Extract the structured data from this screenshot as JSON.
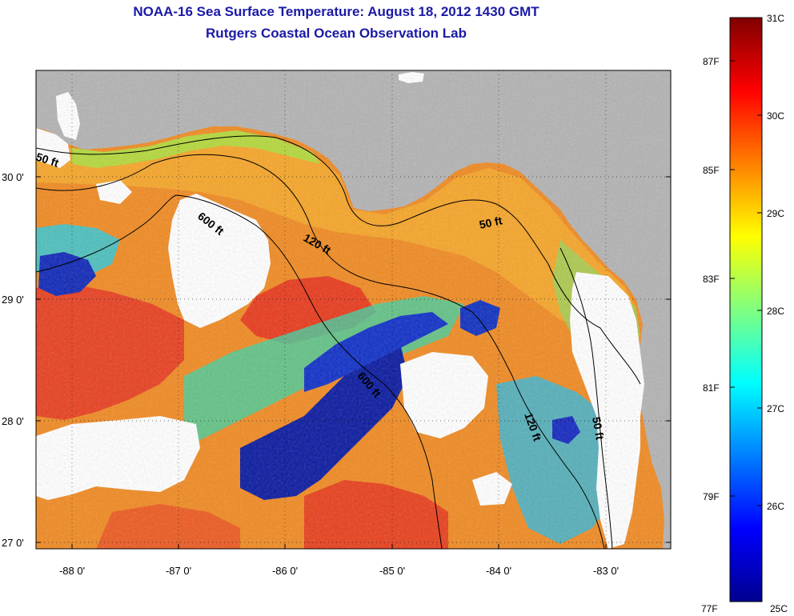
{
  "title": {
    "line1": "NOAA-16 Sea Surface Temperature:  August 18, 2012 1430 GMT",
    "line2": "Rutgers Coastal Ocean Observation Lab"
  },
  "axes": {
    "x_ticks": [
      "-88 0'",
      "-87 0'",
      "-86 0'",
      "-85 0'",
      "-84 0'",
      "-83 0'"
    ],
    "y_ticks": [
      "30 0'",
      "29 0'",
      "28 0'",
      "27 0'"
    ]
  },
  "contours": {
    "c50_west": "50 ft",
    "c600_north": "600 ft",
    "c120_north": "120 ft",
    "c50_east": "50 ft",
    "c600_south": "600 ft",
    "c120_east": "120 ft",
    "c50_southeast": "50 ft"
  },
  "colorbar": {
    "celsius_labels": [
      "31C",
      "30C",
      "29C",
      "28C",
      "27C",
      "26C",
      "25C"
    ],
    "fahrenheit_labels": [
      "87F",
      "85F",
      "83F",
      "81F",
      "79F",
      "77F"
    ]
  },
  "colors": {
    "title": "#1a1aa6",
    "land": "#b3b3b3",
    "cloud": "#ffffff",
    "warm": "#f07820",
    "hot": "#e83018",
    "cold": "#0a1aa0"
  }
}
